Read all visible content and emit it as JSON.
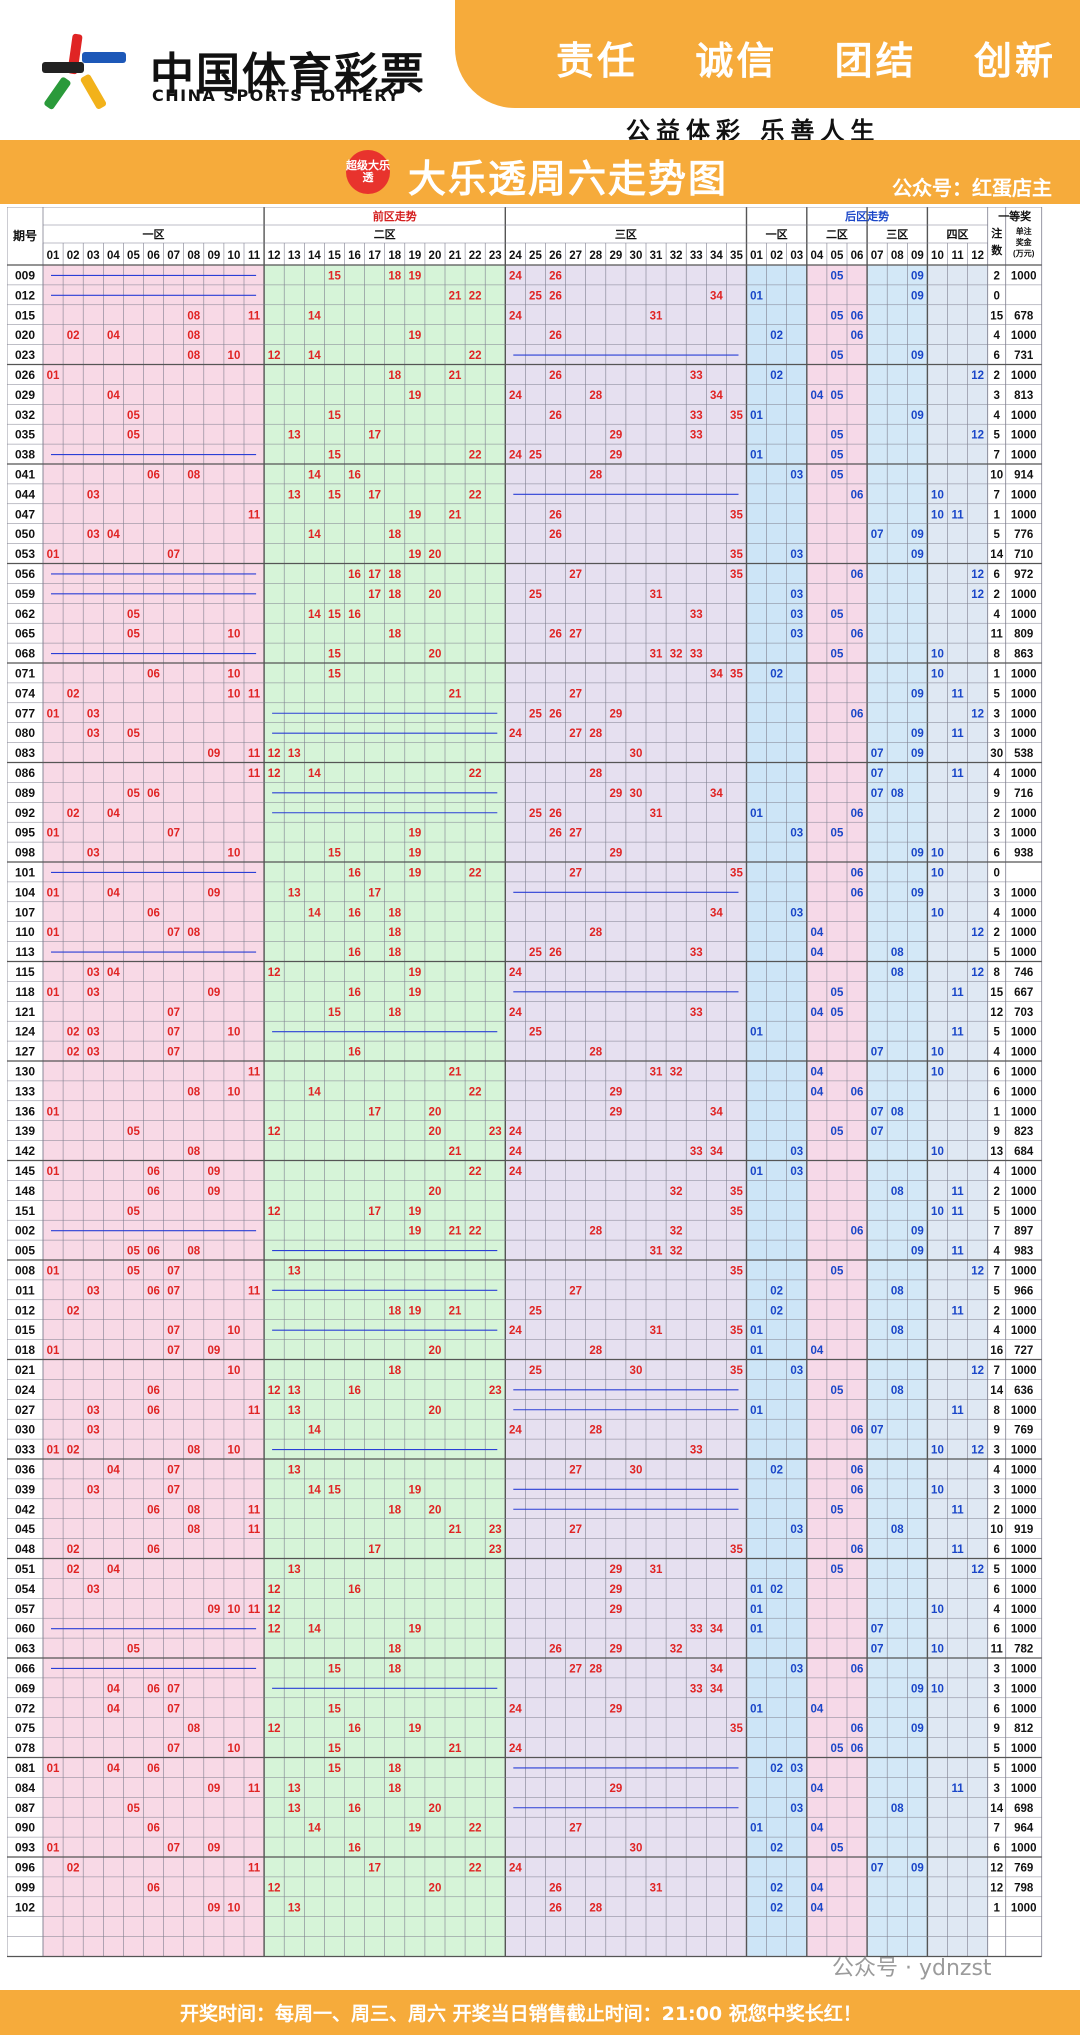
{
  "header": {
    "logo_cn": "中国体育彩票",
    "logo_en": "CHINA SPORTS LOTTERY",
    "mottos": [
      "责任",
      "诚信",
      "团结",
      "创新"
    ],
    "slogan": "公益体彩  乐善人生"
  },
  "title": {
    "badge": "超级大乐透",
    "main": "大乐透周六走势图",
    "account": "公众号：红蛋店主"
  },
  "table": {
    "col_issue": "期号",
    "front_title": "前区走势",
    "back_title": "后区走势",
    "first_prize": "一等奖",
    "zones_front": [
      "一区",
      "二区",
      "三区"
    ],
    "zones_back": [
      "一区",
      "二区",
      "三区",
      "四区"
    ],
    "col_count": "注数",
    "col_amount": "单注奖金(万元)",
    "front_numbers": [
      "01",
      "02",
      "03",
      "04",
      "05",
      "06",
      "07",
      "08",
      "09",
      "10",
      "11",
      "12",
      "13",
      "14",
      "15",
      "16",
      "17",
      "18",
      "19",
      "20",
      "21",
      "22",
      "23",
      "24",
      "25",
      "26",
      "27",
      "28",
      "29",
      "30",
      "31",
      "32",
      "33",
      "34",
      "35"
    ],
    "back_numbers": [
      "01",
      "02",
      "03",
      "04",
      "05",
      "06",
      "07",
      "08",
      "09",
      "10",
      "11",
      "12"
    ],
    "colors": {
      "zone1": "#f8d9e6",
      "zone2": "#d6f4d8",
      "zone3": "#e6e0f0",
      "back1": "#cde5f7",
      "back2": "#f6d9e8",
      "back3": "#d3e8f7",
      "back4": "#dfe8f3",
      "front_text": "#e02424",
      "back_text": "#1a46c8",
      "grid": "#7f7f8f",
      "section": "#555555"
    }
  },
  "rows": [
    {
      "issue": "009",
      "front": [
        15,
        18,
        19,
        24,
        26
      ],
      "back": [
        5,
        9
      ],
      "count": "2",
      "amount": "1000"
    },
    {
      "issue": "012",
      "front": [
        21,
        22,
        25,
        26,
        34
      ],
      "back": [
        1,
        9
      ],
      "count": "0",
      "amount": ""
    },
    {
      "issue": "015",
      "front": [
        8,
        11,
        14,
        24,
        31
      ],
      "back": [
        5,
        6
      ],
      "count": "15",
      "amount": "678"
    },
    {
      "issue": "020",
      "front": [
        2,
        4,
        8,
        19,
        26
      ],
      "back": [
        2,
        6
      ],
      "count": "4",
      "amount": "1000"
    },
    {
      "issue": "023",
      "front": [
        8,
        10,
        12,
        14,
        22
      ],
      "back": [
        5,
        9
      ],
      "count": "6",
      "amount": "731"
    },
    {
      "issue": "026",
      "front": [
        1,
        18,
        21,
        26,
        33
      ],
      "back": [
        2,
        12
      ],
      "count": "2",
      "amount": "1000"
    },
    {
      "issue": "029",
      "front": [
        4,
        19,
        24,
        28,
        34
      ],
      "back": [
        4,
        5
      ],
      "count": "3",
      "amount": "813"
    },
    {
      "issue": "032",
      "front": [
        5,
        15,
        26,
        33,
        35
      ],
      "back": [
        1,
        9
      ],
      "count": "4",
      "amount": "1000"
    },
    {
      "issue": "035",
      "front": [
        5,
        13,
        17,
        29,
        33
      ],
      "back": [
        5,
        12
      ],
      "count": "5",
      "amount": "1000"
    },
    {
      "issue": "038",
      "front": [
        15,
        22,
        24,
        25,
        29
      ],
      "back": [
        1,
        5
      ],
      "count": "7",
      "amount": "1000"
    },
    {
      "issue": "041",
      "front": [
        6,
        8,
        14,
        16,
        28
      ],
      "back": [
        3,
        5
      ],
      "count": "10",
      "amount": "914"
    },
    {
      "issue": "044",
      "front": [
        3,
        13,
        15,
        17,
        22
      ],
      "back": [
        6,
        10
      ],
      "count": "7",
      "amount": "1000"
    },
    {
      "issue": "047",
      "front": [
        11,
        19,
        21,
        26,
        35
      ],
      "back": [
        10,
        11
      ],
      "count": "1",
      "amount": "1000"
    },
    {
      "issue": "050",
      "front": [
        3,
        4,
        14,
        18,
        26
      ],
      "back": [
        7,
        9
      ],
      "count": "5",
      "amount": "776"
    },
    {
      "issue": "053",
      "front": [
        1,
        7,
        19,
        20,
        35
      ],
      "back": [
        3,
        9
      ],
      "count": "14",
      "amount": "710"
    },
    {
      "issue": "056",
      "front": [
        16,
        17,
        18,
        27,
        35
      ],
      "back": [
        6,
        12
      ],
      "count": "6",
      "amount": "972"
    },
    {
      "issue": "059",
      "front": [
        17,
        18,
        20,
        25,
        31
      ],
      "back": [
        3,
        12
      ],
      "count": "2",
      "amount": "1000"
    },
    {
      "issue": "062",
      "front": [
        5,
        14,
        15,
        16,
        33
      ],
      "back": [
        3,
        5
      ],
      "count": "4",
      "amount": "1000"
    },
    {
      "issue": "065",
      "front": [
        5,
        10,
        18,
        26,
        27
      ],
      "back": [
        3,
        6
      ],
      "count": "11",
      "amount": "809"
    },
    {
      "issue": "068",
      "front": [
        15,
        20,
        31,
        32,
        33
      ],
      "back": [
        5,
        10
      ],
      "count": "8",
      "amount": "863"
    },
    {
      "issue": "071",
      "front": [
        6,
        10,
        15,
        34,
        35
      ],
      "back": [
        2,
        10
      ],
      "count": "1",
      "amount": "1000"
    },
    {
      "issue": "074",
      "front": [
        2,
        10,
        11,
        21,
        27
      ],
      "back": [
        9,
        11
      ],
      "count": "5",
      "amount": "1000"
    },
    {
      "issue": "077",
      "front": [
        1,
        3,
        25,
        26,
        29
      ],
      "back": [
        6,
        12
      ],
      "count": "3",
      "amount": "1000"
    },
    {
      "issue": "080",
      "front": [
        3,
        5,
        24,
        27,
        28
      ],
      "back": [
        9,
        11
      ],
      "count": "3",
      "amount": "1000"
    },
    {
      "issue": "083",
      "front": [
        9,
        11,
        12,
        13,
        30
      ],
      "back": [
        7,
        9
      ],
      "count": "30",
      "amount": "538"
    },
    {
      "issue": "086",
      "front": [
        11,
        12,
        14,
        22,
        28
      ],
      "back": [
        7,
        11
      ],
      "count": "4",
      "amount": "1000"
    },
    {
      "issue": "089",
      "front": [
        5,
        6,
        29,
        30,
        34
      ],
      "back": [
        7,
        8
      ],
      "count": "9",
      "amount": "716"
    },
    {
      "issue": "092",
      "front": [
        2,
        4,
        25,
        26,
        31
      ],
      "back": [
        1,
        6
      ],
      "count": "2",
      "amount": "1000"
    },
    {
      "issue": "095",
      "front": [
        1,
        7,
        19,
        26,
        27
      ],
      "back": [
        3,
        5
      ],
      "count": "3",
      "amount": "1000"
    },
    {
      "issue": "098",
      "front": [
        3,
        10,
        15,
        19,
        29
      ],
      "back": [
        9,
        10
      ],
      "count": "6",
      "amount": "938"
    },
    {
      "issue": "101",
      "front": [
        16,
        19,
        22,
        27,
        35
      ],
      "back": [
        6,
        10
      ],
      "count": "0",
      "amount": ""
    },
    {
      "issue": "104",
      "front": [
        1,
        4,
        9,
        13,
        17
      ],
      "back": [
        6,
        9
      ],
      "count": "3",
      "amount": "1000"
    },
    {
      "issue": "107",
      "front": [
        6,
        14,
        16,
        18,
        34
      ],
      "back": [
        3,
        10
      ],
      "count": "4",
      "amount": "1000"
    },
    {
      "issue": "110",
      "front": [
        1,
        7,
        8,
        18,
        28
      ],
      "back": [
        4,
        12
      ],
      "count": "2",
      "amount": "1000"
    },
    {
      "issue": "113",
      "front": [
        16,
        18,
        25,
        26,
        33
      ],
      "back": [
        4,
        8
      ],
      "count": "5",
      "amount": "1000"
    },
    {
      "issue": "115",
      "front": [
        3,
        4,
        12,
        19,
        24
      ],
      "back": [
        8,
        12
      ],
      "count": "8",
      "amount": "746"
    },
    {
      "issue": "118",
      "front": [
        1,
        3,
        9,
        16,
        19
      ],
      "back": [
        5,
        11
      ],
      "count": "15",
      "amount": "667"
    },
    {
      "issue": "121",
      "front": [
        7,
        15,
        18,
        24,
        33
      ],
      "back": [
        4,
        5
      ],
      "count": "12",
      "amount": "703"
    },
    {
      "issue": "124",
      "front": [
        2,
        3,
        7,
        10,
        25
      ],
      "back": [
        1,
        11
      ],
      "count": "5",
      "amount": "1000"
    },
    {
      "issue": "127",
      "front": [
        2,
        3,
        7,
        16,
        28
      ],
      "back": [
        7,
        10
      ],
      "count": "4",
      "amount": "1000"
    },
    {
      "issue": "130",
      "front": [
        11,
        21,
        31,
        32
      ],
      "back": [
        4,
        10
      ],
      "count": "6",
      "amount": "1000"
    },
    {
      "issue": "133",
      "front": [
        8,
        10,
        14,
        22,
        29
      ],
      "back": [
        4,
        6
      ],
      "count": "6",
      "amount": "1000"
    },
    {
      "issue": "136",
      "front": [
        1,
        17,
        20,
        29,
        34
      ],
      "back": [
        7,
        8
      ],
      "count": "1",
      "amount": "1000"
    },
    {
      "issue": "139",
      "front": [
        5,
        12,
        20,
        23,
        24
      ],
      "back": [
        5,
        7
      ],
      "count": "9",
      "amount": "823"
    },
    {
      "issue": "142",
      "front": [
        8,
        21,
        24,
        33,
        34
      ],
      "back": [
        3,
        10
      ],
      "count": "13",
      "amount": "684"
    },
    {
      "issue": "145",
      "front": [
        1,
        6,
        9,
        22,
        24
      ],
      "back": [
        1,
        3
      ],
      "count": "4",
      "amount": "1000"
    },
    {
      "issue": "148",
      "front": [
        6,
        9,
        20,
        32,
        35
      ],
      "back": [
        8,
        11
      ],
      "count": "2",
      "amount": "1000"
    },
    {
      "issue": "151",
      "front": [
        5,
        12,
        17,
        19,
        35
      ],
      "back": [
        10,
        11
      ],
      "count": "5",
      "amount": "1000"
    },
    {
      "issue": "002",
      "front": [
        19,
        21,
        22,
        28,
        32
      ],
      "back": [
        6,
        9
      ],
      "count": "7",
      "amount": "897"
    },
    {
      "issue": "005",
      "front": [
        5,
        6,
        8,
        31,
        32
      ],
      "back": [
        9,
        11
      ],
      "count": "4",
      "amount": "983"
    },
    {
      "issue": "008",
      "front": [
        1,
        5,
        7,
        13,
        35
      ],
      "back": [
        5,
        12
      ],
      "count": "7",
      "amount": "1000"
    },
    {
      "issue": "011",
      "front": [
        3,
        6,
        7,
        11,
        27
      ],
      "back": [
        2,
        8
      ],
      "count": "5",
      "amount": "966"
    },
    {
      "issue": "012",
      "front": [
        2,
        18,
        19,
        21,
        25
      ],
      "back": [
        2,
        11
      ],
      "count": "2",
      "amount": "1000"
    },
    {
      "issue": "015",
      "front": [
        7,
        10,
        24,
        31,
        35
      ],
      "back": [
        1,
        8
      ],
      "count": "4",
      "amount": "1000"
    },
    {
      "issue": "018",
      "front": [
        1,
        7,
        9,
        20,
        28
      ],
      "back": [
        1,
        4
      ],
      "count": "16",
      "amount": "727"
    },
    {
      "issue": "021",
      "front": [
        10,
        18,
        25,
        30,
        35
      ],
      "back": [
        3,
        12
      ],
      "count": "7",
      "amount": "1000"
    },
    {
      "issue": "024",
      "front": [
        6,
        12,
        13,
        16,
        23
      ],
      "back": [
        5,
        8
      ],
      "count": "14",
      "amount": "636"
    },
    {
      "issue": "027",
      "front": [
        3,
        6,
        11,
        13,
        20
      ],
      "back": [
        1,
        11
      ],
      "count": "8",
      "amount": "1000"
    },
    {
      "issue": "030",
      "front": [
        3,
        14,
        24,
        28
      ],
      "back": [
        6,
        7
      ],
      "count": "9",
      "amount": "769"
    },
    {
      "issue": "033",
      "front": [
        1,
        2,
        8,
        10,
        33
      ],
      "back": [
        10,
        12
      ],
      "count": "3",
      "amount": "1000"
    },
    {
      "issue": "036",
      "front": [
        4,
        7,
        13,
        27,
        30
      ],
      "back": [
        2,
        6
      ],
      "count": "4",
      "amount": "1000"
    },
    {
      "issue": "039",
      "front": [
        3,
        7,
        14,
        15,
        19
      ],
      "back": [
        6,
        10
      ],
      "count": "3",
      "amount": "1000"
    },
    {
      "issue": "042",
      "front": [
        6,
        8,
        11,
        18,
        20
      ],
      "back": [
        5,
        11
      ],
      "count": "2",
      "amount": "1000"
    },
    {
      "issue": "045",
      "front": [
        8,
        11,
        21,
        23,
        27
      ],
      "back": [
        3,
        8
      ],
      "count": "10",
      "amount": "919"
    },
    {
      "issue": "048",
      "front": [
        2,
        6,
        17,
        23,
        35
      ],
      "back": [
        6,
        11
      ],
      "count": "6",
      "amount": "1000"
    },
    {
      "issue": "051",
      "front": [
        2,
        4,
        13,
        29,
        31
      ],
      "back": [
        5,
        12
      ],
      "count": "5",
      "amount": "1000"
    },
    {
      "issue": "054",
      "front": [
        3,
        12,
        16,
        29
      ],
      "back": [
        1,
        2
      ],
      "count": "6",
      "amount": "1000"
    },
    {
      "issue": "057",
      "front": [
        9,
        10,
        11,
        12,
        29
      ],
      "back": [
        1,
        10
      ],
      "count": "4",
      "amount": "1000"
    },
    {
      "issue": "060",
      "front": [
        12,
        14,
        19,
        33,
        34
      ],
      "back": [
        1,
        7
      ],
      "count": "6",
      "amount": "1000"
    },
    {
      "issue": "063",
      "front": [
        5,
        18,
        26,
        29,
        32
      ],
      "back": [
        7,
        10
      ],
      "count": "11",
      "amount": "782"
    },
    {
      "issue": "066",
      "front": [
        15,
        18,
        27,
        28,
        34
      ],
      "back": [
        3,
        6
      ],
      "count": "3",
      "amount": "1000"
    },
    {
      "issue": "069",
      "front": [
        4,
        6,
        7,
        33,
        34
      ],
      "back": [
        9,
        10
      ],
      "count": "3",
      "amount": "1000"
    },
    {
      "issue": "072",
      "front": [
        4,
        7,
        15,
        24,
        29
      ],
      "back": [
        1,
        4
      ],
      "count": "6",
      "amount": "1000"
    },
    {
      "issue": "075",
      "front": [
        8,
        12,
        16,
        19,
        35
      ],
      "back": [
        6,
        9
      ],
      "count": "9",
      "amount": "812"
    },
    {
      "issue": "078",
      "front": [
        7,
        10,
        15,
        21,
        24
      ],
      "back": [
        5,
        6
      ],
      "count": "5",
      "amount": "1000"
    },
    {
      "issue": "081",
      "front": [
        1,
        4,
        6,
        15,
        18
      ],
      "back": [
        2,
        3
      ],
      "count": "5",
      "amount": "1000"
    },
    {
      "issue": "084",
      "front": [
        9,
        11,
        13,
        18,
        29
      ],
      "back": [
        4,
        11
      ],
      "count": "3",
      "amount": "1000"
    },
    {
      "issue": "087",
      "front": [
        5,
        13,
        16,
        20
      ],
      "back": [
        3,
        8
      ],
      "count": "14",
      "amount": "698"
    },
    {
      "issue": "090",
      "front": [
        6,
        14,
        19,
        22,
        27
      ],
      "back": [
        1,
        4
      ],
      "count": "7",
      "amount": "964"
    },
    {
      "issue": "093",
      "front": [
        1,
        7,
        9,
        16,
        30
      ],
      "back": [
        2,
        5
      ],
      "count": "6",
      "amount": "1000"
    },
    {
      "issue": "096",
      "front": [
        2,
        11,
        17,
        22,
        24
      ],
      "back": [
        7,
        9
      ],
      "count": "12",
      "amount": "769"
    },
    {
      "issue": "099",
      "front": [
        6,
        12,
        20,
        26,
        31
      ],
      "back": [
        2,
        4
      ],
      "count": "12",
      "amount": "798"
    },
    {
      "issue": "102",
      "front": [
        9,
        10,
        13,
        26,
        28
      ],
      "back": [
        2,
        4
      ],
      "count": "1",
      "amount": "1000"
    }
  ],
  "footer": {
    "text": "开奖时间：每周一、周三、周六  开奖当日销售截止时间：21:00  祝您中奖长红！",
    "watermark": "公众号 · ydnzst"
  }
}
